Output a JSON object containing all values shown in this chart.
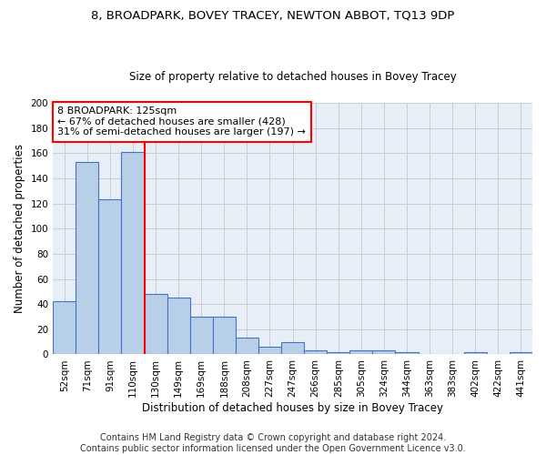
{
  "title": "8, BROADPARK, BOVEY TRACEY, NEWTON ABBOT, TQ13 9DP",
  "subtitle": "Size of property relative to detached houses in Bovey Tracey",
  "xlabel": "Distribution of detached houses by size in Bovey Tracey",
  "ylabel": "Number of detached properties",
  "categories": [
    "52sqm",
    "71sqm",
    "91sqm",
    "110sqm",
    "130sqm",
    "149sqm",
    "169sqm",
    "188sqm",
    "208sqm",
    "227sqm",
    "247sqm",
    "266sqm",
    "285sqm",
    "305sqm",
    "324sqm",
    "344sqm",
    "363sqm",
    "383sqm",
    "402sqm",
    "422sqm",
    "441sqm"
  ],
  "values": [
    42,
    153,
    123,
    161,
    48,
    45,
    30,
    30,
    13,
    6,
    10,
    3,
    2,
    3,
    3,
    2,
    0,
    0,
    2,
    0,
    2
  ],
  "bar_color": "#b8cfe8",
  "bar_edge_color": "#4472c4",
  "bar_linewidth": 0.8,
  "vline_x_index": 4,
  "vline_color": "red",
  "vline_linewidth": 1.5,
  "annotation_text": "8 BROADPARK: 125sqm\n← 67% of detached houses are smaller (428)\n31% of semi-detached houses are larger (197) →",
  "annotation_box_color": "white",
  "annotation_box_edge_color": "red",
  "ylim": [
    0,
    200
  ],
  "yticks": [
    0,
    20,
    40,
    60,
    80,
    100,
    120,
    140,
    160,
    180,
    200
  ],
  "grid_color": "#cccccc",
  "background_color": "#e8eef7",
  "footer_text": "Contains HM Land Registry data © Crown copyright and database right 2024.\nContains public sector information licensed under the Open Government Licence v3.0.",
  "title_fontsize": 9.5,
  "subtitle_fontsize": 8.5,
  "xlabel_fontsize": 8.5,
  "ylabel_fontsize": 8.5,
  "tick_fontsize": 7.5,
  "annotation_fontsize": 8,
  "footer_fontsize": 7
}
